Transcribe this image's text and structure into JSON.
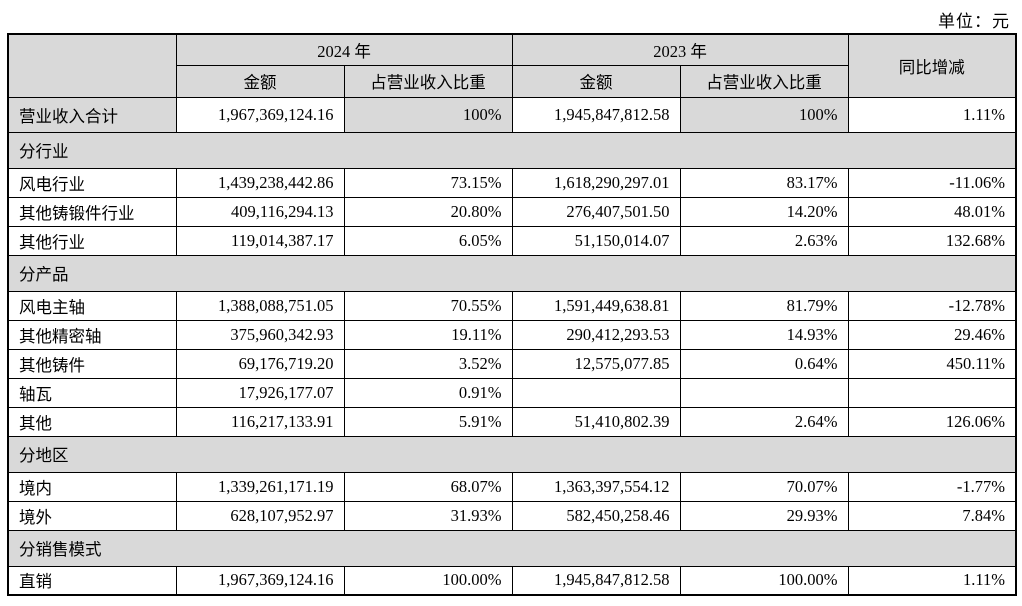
{
  "unit_label": "单位：元",
  "table": {
    "col_headers": {
      "year_2024": "2024 年",
      "year_2023": "2023 年",
      "yoy": "同比增减",
      "amount": "金额",
      "pct": "占营业收入比重"
    },
    "rows": [
      {
        "type": "total",
        "label": "营业收入合计",
        "a2024": "1,967,369,124.16",
        "p2024": "100%",
        "a2023": "1,945,847,812.58",
        "p2023": "100%",
        "yoy": "1.11%"
      },
      {
        "type": "section",
        "label": "分行业"
      },
      {
        "type": "data",
        "label": "风电行业",
        "a2024": "1,439,238,442.86",
        "p2024": "73.15%",
        "a2023": "1,618,290,297.01",
        "p2023": "83.17%",
        "yoy": "-11.06%"
      },
      {
        "type": "data",
        "label": "其他铸锻件行业",
        "a2024": "409,116,294.13",
        "p2024": "20.80%",
        "a2023": "276,407,501.50",
        "p2023": "14.20%",
        "yoy": "48.01%"
      },
      {
        "type": "data",
        "label": "其他行业",
        "a2024": "119,014,387.17",
        "p2024": "6.05%",
        "a2023": "51,150,014.07",
        "p2023": "2.63%",
        "yoy": "132.68%"
      },
      {
        "type": "section",
        "label": "分产品"
      },
      {
        "type": "data",
        "label": "风电主轴",
        "a2024": "1,388,088,751.05",
        "p2024": "70.55%",
        "a2023": "1,591,449,638.81",
        "p2023": "81.79%",
        "yoy": "-12.78%"
      },
      {
        "type": "data",
        "label": "其他精密轴",
        "a2024": "375,960,342.93",
        "p2024": "19.11%",
        "a2023": "290,412,293.53",
        "p2023": "14.93%",
        "yoy": "29.46%"
      },
      {
        "type": "data",
        "label": "其他铸件",
        "a2024": "69,176,719.20",
        "p2024": "3.52%",
        "a2023": "12,575,077.85",
        "p2023": "0.64%",
        "yoy": "450.11%"
      },
      {
        "type": "data",
        "label": "轴瓦",
        "a2024": "17,926,177.07",
        "p2024": "0.91%",
        "a2023": "",
        "p2023": "",
        "yoy": ""
      },
      {
        "type": "data",
        "label": "其他",
        "a2024": "116,217,133.91",
        "p2024": "5.91%",
        "a2023": "51,410,802.39",
        "p2023": "2.64%",
        "yoy": "126.06%"
      },
      {
        "type": "section",
        "label": "分地区"
      },
      {
        "type": "data",
        "label": "境内",
        "a2024": "1,339,261,171.19",
        "p2024": "68.07%",
        "a2023": "1,363,397,554.12",
        "p2023": "70.07%",
        "yoy": "-1.77%"
      },
      {
        "type": "data",
        "label": "境外",
        "a2024": "628,107,952.97",
        "p2024": "31.93%",
        "a2023": "582,450,258.46",
        "p2023": "29.93%",
        "yoy": "7.84%"
      },
      {
        "type": "section",
        "label": "分销售模式"
      },
      {
        "type": "data",
        "label": "直销",
        "a2024": "1,967,369,124.16",
        "p2024": "100.00%",
        "a2023": "1,945,847,812.58",
        "p2023": "100.00%",
        "yoy": "1.11%"
      }
    ]
  },
  "colors": {
    "header_bg": "#d9d9d9",
    "section_bg": "#d9d9d9",
    "border": "#000000",
    "text": "#000000"
  }
}
